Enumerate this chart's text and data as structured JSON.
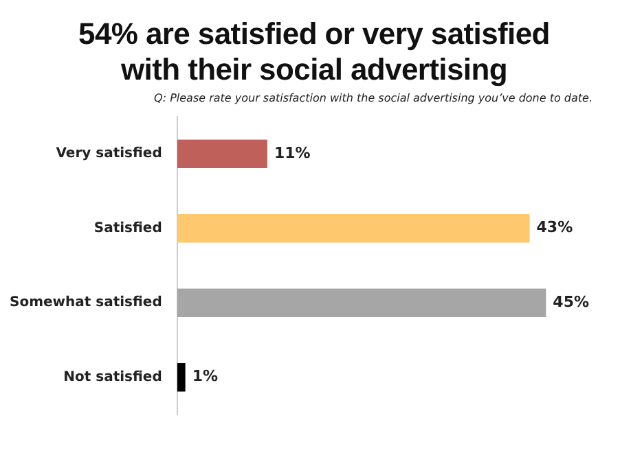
{
  "chart_data": {
    "type": "bar",
    "orientation": "horizontal",
    "title": "54% are satisfied or very satisfied with their social advertising",
    "subtitle": "Q: Please rate your satisfaction with the social advertising you’ve done to date.",
    "categories": [
      "Very satisfied",
      "Satisfied",
      "Somewhat satisfied",
      "Not satisfied"
    ],
    "values": [
      11,
      43,
      45,
      1
    ],
    "colors": [
      "#c0605a",
      "#fdc86e",
      "#a6a6a6",
      "#000000"
    ],
    "value_labels": [
      "11%",
      "43%",
      "45%",
      "1%"
    ],
    "tick_labels": "y",
    "grid": false,
    "legend": false
  }
}
